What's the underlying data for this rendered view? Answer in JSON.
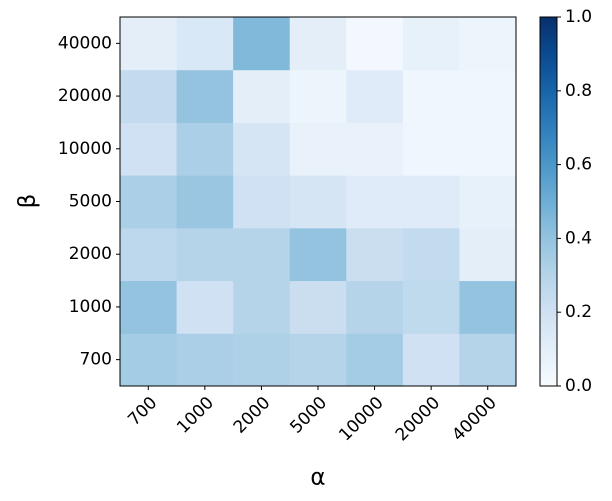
{
  "chart_data": {
    "type": "heatmap",
    "x_label": "α",
    "y_label": "β",
    "x_categories": [
      "700",
      "1000",
      "2000",
      "5000",
      "10000",
      "20000",
      "40000"
    ],
    "y_categories": [
      "700",
      "1000",
      "2000",
      "5000",
      "10000",
      "20000",
      "40000"
    ],
    "values": [
      [
        0.35,
        0.33,
        0.32,
        0.3,
        0.35,
        0.2,
        0.3
      ],
      [
        0.4,
        0.2,
        0.3,
        0.22,
        0.3,
        0.26,
        0.4
      ],
      [
        0.27,
        0.3,
        0.3,
        0.4,
        0.22,
        0.25,
        0.1
      ],
      [
        0.33,
        0.38,
        0.2,
        0.17,
        0.12,
        0.12,
        0.08
      ],
      [
        0.2,
        0.33,
        0.17,
        0.07,
        0.07,
        0.04,
        0.04
      ],
      [
        0.25,
        0.4,
        0.1,
        0.05,
        0.12,
        0.04,
        0.04
      ],
      [
        0.1,
        0.15,
        0.45,
        0.1,
        0.02,
        0.08,
        0.05
      ]
    ],
    "colormap": "Blues",
    "zlim": [
      0,
      1
    ],
    "zticks": [
      {
        "value": 0,
        "label": "0.0"
      },
      0.2,
      0.4,
      0.6,
      0.8,
      {
        "value": 1,
        "label": "1.0"
      }
    ]
  }
}
